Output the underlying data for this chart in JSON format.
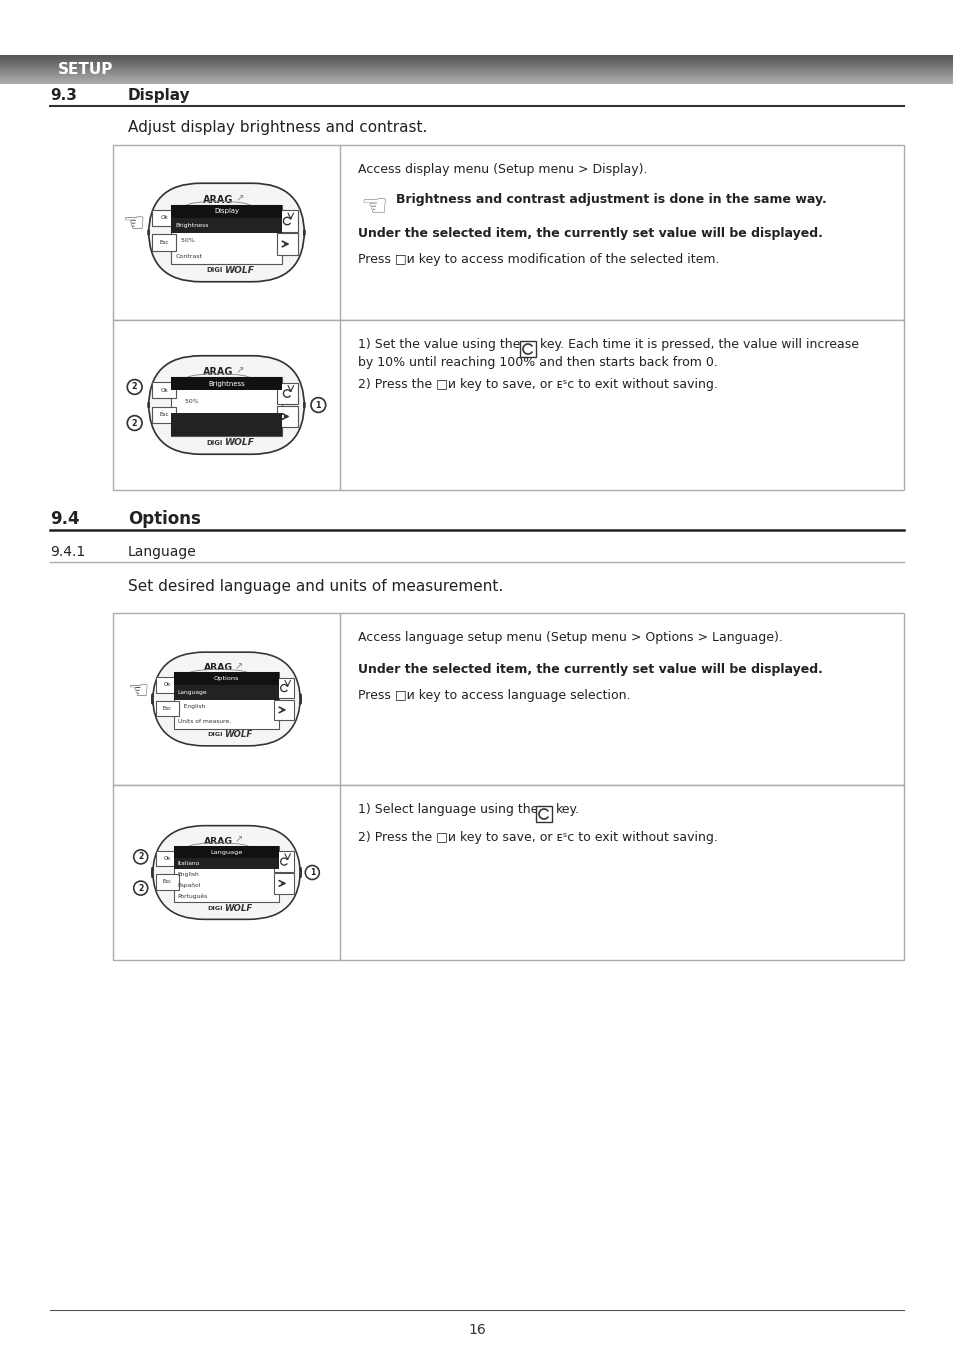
{
  "page_bg": "#ffffff",
  "header_bg_dark": "#555555",
  "header_bg_light": "#aaaaaa",
  "header_text": "SETUP",
  "header_text_color": "#ffffff",
  "section_93_num": "9.3",
  "section_93_title": "Display",
  "section_93_intro": "Adjust display brightness and contrast.",
  "section_94_num": "9.4",
  "section_94_title": "Options",
  "section_941_num": "9.4.1",
  "section_941_title": "Language",
  "section_941_intro": "Set desired language and units of measurement.",
  "page_number": "16",
  "t1r1_line1": "Access display menu (Setup menu > Display).",
  "t1r1_bold1": "Brightness and contrast adjustment is done in the same way.",
  "t1r1_bold2": "Under the selected item, the currently set value will be displayed.",
  "t1r1_line3": "Press □ᴎ key to access modification of the selected item.",
  "t1r2_line1a": "1) Set the value using the",
  "t1r2_line1b": "key. Each time it is pressed, the value will increase",
  "t1r2_line2": "by 10% until reaching 100% and then starts back from 0.",
  "t1r2_line3": "2) Press the □ᴎ key to save, or ᴇsc to exit without saving.",
  "t2r1_line1": "Access language setup menu (Setup menu > Options > Language).",
  "t2r1_bold1": "Under the selected item, the currently set value will be displayed.",
  "t2r1_line2": "Press □ᴎ key to access language selection.",
  "t2r2_line1a": "1) Select language using the",
  "t2r2_line1b": "key.",
  "t2r2_line2": "2) Press the □ᴎ key to save, or ᴇsc to exit without saving."
}
